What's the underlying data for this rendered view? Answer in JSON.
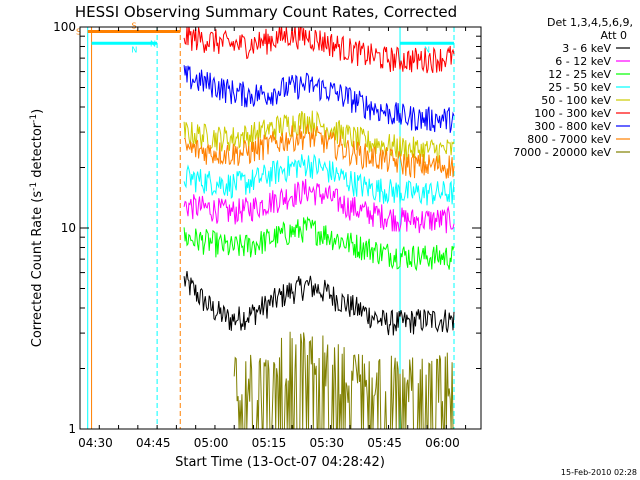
{
  "chart_data": {
    "type": "line",
    "title": "HESSI Observing Summary Count Rates, Corrected",
    "xlabel": "Start Time (13-Oct-07 04:28:42)",
    "ylabel_prefix": "Corrected Count Rate (s",
    "ylabel_sup1": "-1",
    "ylabel_mid": " detector",
    "ylabel_sup2": "-1",
    "ylabel_suffix": ")",
    "y_scale": "log",
    "ylim": [
      1,
      100
    ],
    "xlim": [
      "04:26",
      "06:10"
    ],
    "x_ticks": [
      "04:30",
      "04:45",
      "05:00",
      "05:15",
      "05:30",
      "05:45",
      "06:00"
    ],
    "y_ticks": [
      "1",
      "10",
      "100"
    ],
    "timestamp": "15-Feb-2010 02:28",
    "legend_header": [
      "Det 1,3,4,5,6,9,",
      "Att 0"
    ],
    "flag_labels": {
      "s": "S",
      "n": "N"
    },
    "data_gap": [
      "04:28",
      "04:52"
    ],
    "series": [
      {
        "name": "3 - 6 keV",
        "color": "#000000",
        "x": [
          "04:53",
          "05:00",
          "05:05",
          "05:10",
          "05:15",
          "05:20",
          "05:25",
          "05:30",
          "05:35",
          "05:40",
          "05:45",
          "05:50",
          "05:55",
          "06:00",
          "06:03"
        ],
        "y": [
          5.5,
          4.0,
          3.5,
          3.7,
          4.2,
          4.8,
          5.2,
          4.8,
          4.2,
          3.8,
          3.4,
          3.4,
          3.5,
          3.5,
          3.5
        ]
      },
      {
        "name": "6 - 12 keV",
        "color": "#ff00ff",
        "x": [
          "04:53",
          "05:00",
          "05:05",
          "05:10",
          "05:15",
          "05:20",
          "05:25",
          "05:30",
          "05:35",
          "05:40",
          "05:45",
          "05:50",
          "05:55",
          "06:00",
          "06:03"
        ],
        "y": [
          13,
          12.5,
          12,
          12.5,
          13.5,
          14.5,
          15.5,
          14.5,
          13,
          12,
          11.5,
          11,
          11,
          11,
          11
        ]
      },
      {
        "name": "12 - 25 keV",
        "color": "#00ff00",
        "x": [
          "04:53",
          "05:00",
          "05:05",
          "05:10",
          "05:15",
          "05:20",
          "05:25",
          "05:30",
          "05:35",
          "05:40",
          "05:45",
          "05:50",
          "05:55",
          "06:00",
          "06:03"
        ],
        "y": [
          9,
          8.5,
          8,
          8.2,
          8.8,
          9.5,
          10,
          9.3,
          8.5,
          8,
          7.5,
          7.3,
          7.2,
          7.2,
          7.2
        ]
      },
      {
        "name": "25 - 50 keV",
        "color": "#00ffff",
        "x": [
          "04:53",
          "05:00",
          "05:05",
          "05:10",
          "05:15",
          "05:20",
          "05:25",
          "05:30",
          "05:35",
          "05:40",
          "05:45",
          "05:50",
          "05:55",
          "06:00",
          "06:03"
        ],
        "y": [
          18,
          17,
          16.5,
          17,
          18.5,
          20,
          21,
          19.5,
          17.5,
          16,
          15.5,
          15,
          15,
          15,
          15
        ]
      },
      {
        "name": "50 - 100 keV",
        "color": "#cccc00",
        "x": [
          "04:53",
          "05:00",
          "05:05",
          "05:10",
          "05:15",
          "05:20",
          "05:25",
          "05:30",
          "05:35",
          "05:40",
          "05:45",
          "05:50",
          "05:55",
          "06:00",
          "06:03"
        ],
        "y": [
          30,
          28.5,
          28,
          29,
          31,
          33,
          34.5,
          32,
          29,
          27,
          26,
          25,
          24.5,
          24.5,
          24.5
        ]
      },
      {
        "name": "100 - 300 keV",
        "color": "#ff0000",
        "x": [
          "04:53",
          "05:00",
          "05:05",
          "05:10",
          "05:15",
          "05:20",
          "05:25",
          "05:30",
          "05:35",
          "05:40",
          "05:45",
          "05:50",
          "05:55",
          "06:00",
          "06:03"
        ],
        "y": [
          90,
          86,
          82,
          82,
          86,
          92,
          90,
          84,
          78,
          73,
          70,
          69,
          69,
          70,
          72
        ]
      },
      {
        "name": "300 - 800 keV",
        "color": "#0000ff",
        "x": [
          "04:53",
          "05:00",
          "05:05",
          "05:10",
          "05:15",
          "05:20",
          "05:25",
          "05:30",
          "05:35",
          "05:40",
          "05:45",
          "05:50",
          "05:55",
          "06:00",
          "06:03"
        ],
        "y": [
          57,
          52,
          48,
          46,
          47,
          50,
          52,
          49,
          45,
          41,
          38,
          36,
          35,
          35,
          35
        ]
      },
      {
        "name": "800 - 7000 keV",
        "color": "#ff8000",
        "x": [
          "04:53",
          "05:00",
          "05:05",
          "05:10",
          "05:15",
          "05:20",
          "05:25",
          "05:30",
          "05:35",
          "05:40",
          "05:45",
          "05:50",
          "05:55",
          "06:00",
          "06:03"
        ],
        "y": [
          25,
          24,
          23.5,
          24,
          26,
          28,
          29,
          27,
          24.5,
          23,
          22,
          21,
          20.5,
          20.5,
          20.5
        ]
      },
      {
        "name": "7000 - 20000 keV",
        "color": "#808000",
        "x": [
          "05:06",
          "05:10",
          "05:15",
          "05:20",
          "05:25",
          "05:30",
          "05:35",
          "05:45",
          "05:50",
          "06:00",
          "06:03"
        ],
        "y": [
          1.5,
          1.4,
          1.5,
          1.8,
          1.8,
          1.7,
          1.5,
          1.4,
          1.4,
          1.4,
          1.5
        ]
      }
    ],
    "flags": [
      {
        "label": "S",
        "color": "#ff8000",
        "y": 95,
        "x": [
          "04:28",
          "04:52"
        ]
      },
      {
        "label": "N",
        "color": "#00ffff",
        "y": 83,
        "x": [
          "04:29",
          "04:46"
        ]
      },
      {
        "label": "N",
        "color": "#00ffff",
        "y": 83,
        "x": [
          "05:49",
          "06:03"
        ]
      }
    ],
    "vlines": [
      {
        "x": "04:28",
        "color": "#00ffff",
        "dashed": false
      },
      {
        "x": "04:29",
        "color": "#ff8000",
        "dashed": false
      },
      {
        "x": "04:46",
        "color": "#00ffff",
        "dashed": true
      },
      {
        "x": "04:52",
        "color": "#ff8000",
        "dashed": true
      },
      {
        "x": "05:49",
        "color": "#00ffff",
        "dashed": false
      },
      {
        "x": "06:03",
        "color": "#00ffff",
        "dashed": true
      }
    ]
  }
}
